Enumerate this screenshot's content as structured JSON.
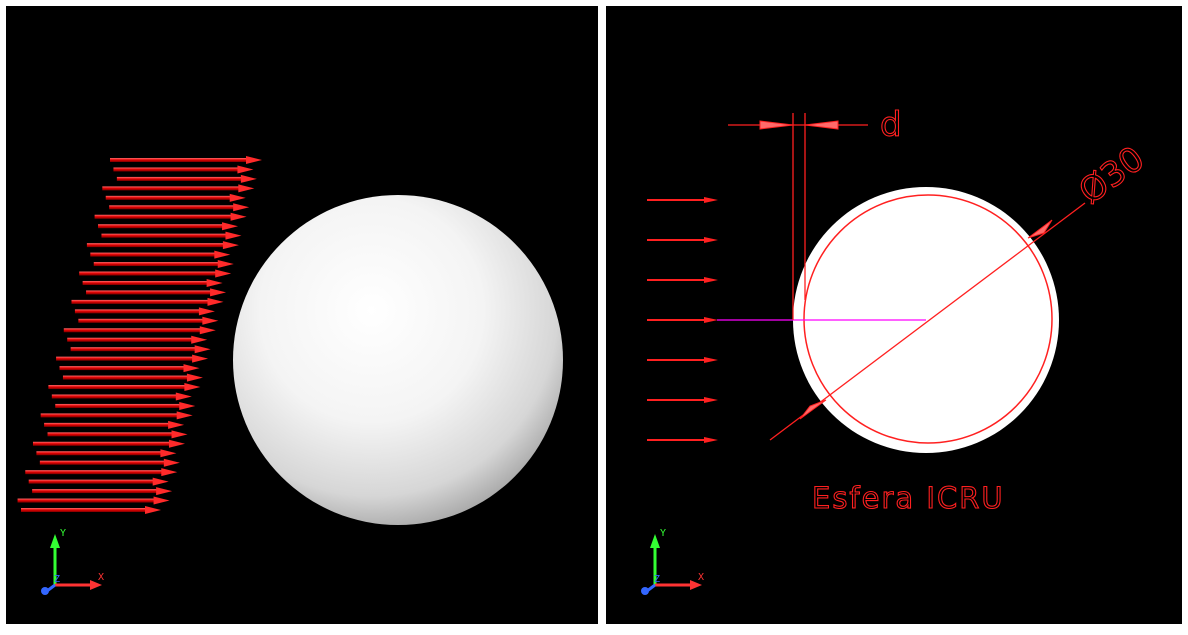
{
  "left_view": {
    "axis_icon": {
      "y_label": "Y",
      "x_label": "X",
      "z_label": "Z"
    }
  },
  "right_view": {
    "dimension_label": "d",
    "diameter_label": "Ø30",
    "sphere_caption": "Esfera ICRU",
    "axis_icon": {
      "y_label": "Y",
      "x_label": "X",
      "z_label": "Z"
    }
  },
  "colors": {
    "background": "#000000",
    "frame": "#ffffff",
    "arrow": "#ff1a1a",
    "dimension": "#ff2020",
    "sphere": "#ffffff",
    "beam_line": "#ff00ff",
    "axis_y": "#33ff33",
    "axis_x": "#ff3333",
    "axis_z": "#3366ff"
  }
}
